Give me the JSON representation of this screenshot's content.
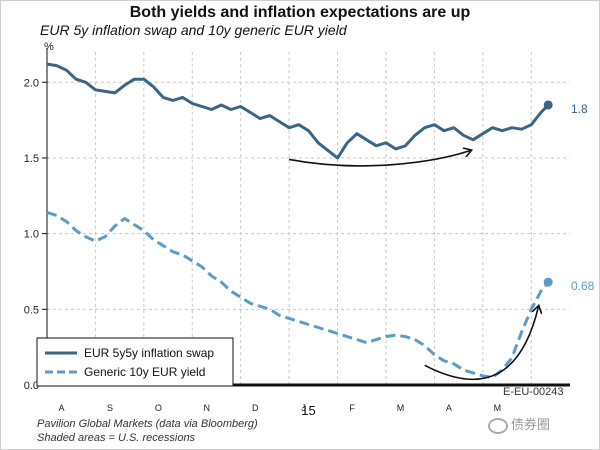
{
  "title": "Both yields and inflation expectations are up",
  "subtitle": "EUR 5y inflation swap and 10y generic EUR yield",
  "footer": {
    "source": "Pavilion Global Markets (data via Bloomberg)",
    "note": "Shaded areas = U.S. recessions",
    "code": "E-EU-00243",
    "watermark": "债券圈"
  },
  "colors": {
    "swap": "#3a6585",
    "yield": "#5c9cc9",
    "grid": "#c8c8c8",
    "axis": "#111111",
    "arrow": "#111111"
  },
  "chart_data": {
    "type": "line",
    "title": "Both yields and inflation expectations are up",
    "ylabel": "%",
    "ylim": [
      0.0,
      2.2
    ],
    "yticks": [
      0.0,
      0.5,
      1.0,
      1.5,
      2.0
    ],
    "ytick_labels": [
      "0.0",
      "0.5",
      "1.0",
      "1.5",
      "2.0"
    ],
    "xlim": [
      0,
      10.8
    ],
    "x_tick_labels": [
      {
        "label": "A",
        "x": 0.3
      },
      {
        "label": "S",
        "x": 1.3
      },
      {
        "label": "O",
        "x": 2.3
      },
      {
        "label": "N",
        "x": 3.3
      },
      {
        "label": "D",
        "x": 4.3
      },
      {
        "label": "J",
        "x": 5.3
      },
      {
        "label": "F",
        "x": 6.3
      },
      {
        "label": "M",
        "x": 7.3
      },
      {
        "label": "A",
        "x": 8.3
      },
      {
        "label": "M",
        "x": 9.3
      }
    ],
    "year_label": {
      "label": "15",
      "x": 5.4
    },
    "legend": [
      {
        "name": "EUR 5y5y inflation swap",
        "style": "solid"
      },
      {
        "name": "Generic 10y EUR yield",
        "style": "dashed"
      }
    ],
    "legend_position": "bottom-left",
    "series": [
      {
        "name": "EUR 5y5y inflation swap",
        "last_label": "1.8",
        "points": [
          [
            0.0,
            2.12
          ],
          [
            0.2,
            2.11
          ],
          [
            0.4,
            2.08
          ],
          [
            0.6,
            2.02
          ],
          [
            0.8,
            2.0
          ],
          [
            1.0,
            1.95
          ],
          [
            1.2,
            1.94
          ],
          [
            1.4,
            1.93
          ],
          [
            1.6,
            1.98
          ],
          [
            1.8,
            2.02
          ],
          [
            2.0,
            2.02
          ],
          [
            2.2,
            1.97
          ],
          [
            2.4,
            1.9
          ],
          [
            2.6,
            1.88
          ],
          [
            2.8,
            1.9
          ],
          [
            3.0,
            1.86
          ],
          [
            3.2,
            1.84
          ],
          [
            3.4,
            1.82
          ],
          [
            3.6,
            1.85
          ],
          [
            3.8,
            1.82
          ],
          [
            4.0,
            1.84
          ],
          [
            4.2,
            1.8
          ],
          [
            4.4,
            1.76
          ],
          [
            4.6,
            1.78
          ],
          [
            4.8,
            1.74
          ],
          [
            5.0,
            1.7
          ],
          [
            5.2,
            1.72
          ],
          [
            5.4,
            1.68
          ],
          [
            5.6,
            1.6
          ],
          [
            5.8,
            1.55
          ],
          [
            6.0,
            1.5
          ],
          [
            6.2,
            1.6
          ],
          [
            6.4,
            1.66
          ],
          [
            6.6,
            1.62
          ],
          [
            6.8,
            1.58
          ],
          [
            7.0,
            1.6
          ],
          [
            7.2,
            1.56
          ],
          [
            7.4,
            1.58
          ],
          [
            7.6,
            1.65
          ],
          [
            7.8,
            1.7
          ],
          [
            8.0,
            1.72
          ],
          [
            8.2,
            1.68
          ],
          [
            8.4,
            1.7
          ],
          [
            8.6,
            1.65
          ],
          [
            8.8,
            1.62
          ],
          [
            9.0,
            1.66
          ],
          [
            9.2,
            1.7
          ],
          [
            9.4,
            1.68
          ],
          [
            9.6,
            1.7
          ],
          [
            9.8,
            1.69
          ],
          [
            10.0,
            1.72
          ],
          [
            10.2,
            1.8
          ],
          [
            10.35,
            1.85
          ]
        ]
      },
      {
        "name": "Generic 10y EUR yield",
        "last_label": "0.68",
        "points": [
          [
            0.0,
            1.14
          ],
          [
            0.2,
            1.12
          ],
          [
            0.4,
            1.08
          ],
          [
            0.6,
            1.02
          ],
          [
            0.8,
            0.98
          ],
          [
            1.0,
            0.95
          ],
          [
            1.2,
            0.98
          ],
          [
            1.4,
            1.05
          ],
          [
            1.6,
            1.1
          ],
          [
            1.8,
            1.06
          ],
          [
            2.0,
            1.02
          ],
          [
            2.2,
            0.96
          ],
          [
            2.4,
            0.92
          ],
          [
            2.6,
            0.88
          ],
          [
            2.8,
            0.86
          ],
          [
            3.0,
            0.82
          ],
          [
            3.2,
            0.78
          ],
          [
            3.4,
            0.72
          ],
          [
            3.6,
            0.68
          ],
          [
            3.8,
            0.62
          ],
          [
            4.0,
            0.58
          ],
          [
            4.2,
            0.54
          ],
          [
            4.4,
            0.52
          ],
          [
            4.6,
            0.5
          ],
          [
            4.8,
            0.46
          ],
          [
            5.0,
            0.44
          ],
          [
            5.2,
            0.42
          ],
          [
            5.4,
            0.4
          ],
          [
            5.6,
            0.38
          ],
          [
            5.8,
            0.36
          ],
          [
            6.0,
            0.34
          ],
          [
            6.2,
            0.32
          ],
          [
            6.4,
            0.3
          ],
          [
            6.6,
            0.28
          ],
          [
            6.8,
            0.3
          ],
          [
            7.0,
            0.32
          ],
          [
            7.2,
            0.33
          ],
          [
            7.4,
            0.32
          ],
          [
            7.6,
            0.3
          ],
          [
            7.8,
            0.26
          ],
          [
            8.0,
            0.2
          ],
          [
            8.2,
            0.16
          ],
          [
            8.4,
            0.14
          ],
          [
            8.6,
            0.1
          ],
          [
            8.8,
            0.08
          ],
          [
            9.0,
            0.06
          ],
          [
            9.2,
            0.05
          ],
          [
            9.4,
            0.1
          ],
          [
            9.6,
            0.18
          ],
          [
            9.8,
            0.35
          ],
          [
            10.0,
            0.5
          ],
          [
            10.2,
            0.62
          ],
          [
            10.35,
            0.68
          ]
        ]
      }
    ],
    "annotations": [
      {
        "type": "arrow",
        "path": [
          [
            5.0,
            1.49
          ],
          [
            6.5,
            1.4
          ],
          [
            8.0,
            1.47
          ],
          [
            8.75,
            1.55
          ]
        ]
      },
      {
        "type": "arrow",
        "path": [
          [
            7.8,
            0.13
          ],
          [
            9.0,
            -0.07
          ],
          [
            9.8,
            0.05
          ],
          [
            10.15,
            0.52
          ]
        ]
      }
    ]
  }
}
